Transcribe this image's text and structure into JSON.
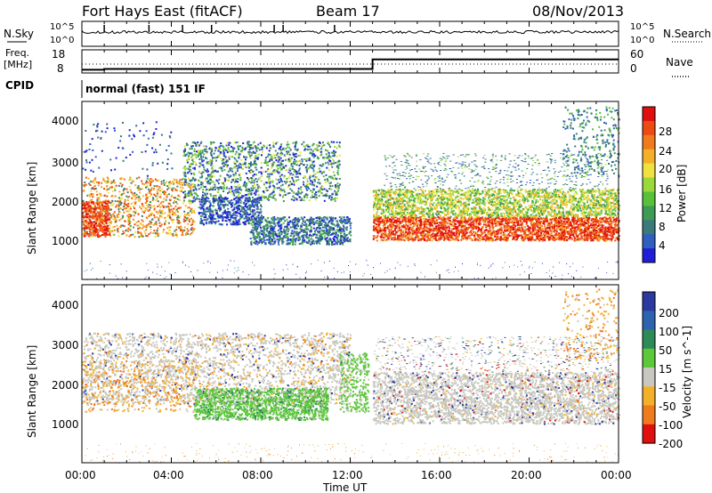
{
  "header": {
    "title": "Fort Hays East (fitACF)",
    "beam": "Beam 17",
    "date": "08/Nov/2013"
  },
  "status_panel": {
    "nsky_label": "N.Sky",
    "nsearch_label": "N.Search",
    "left_ticks": [
      "10^5",
      "10^0"
    ],
    "right_ticks": [
      "10^5",
      "10^0"
    ]
  },
  "freq_panel": {
    "freq_label_line1": "Freq.",
    "freq_label_line2": "[MHz]",
    "nave_label": "Nave",
    "left_ticks": [
      "18",
      "8"
    ],
    "right_ticks": [
      "60",
      "0"
    ],
    "freq_values_mhz": [
      [
        0.0,
        10.0
      ],
      [
        1.0,
        10.0
      ],
      [
        1.0,
        10.5
      ],
      [
        13.0,
        10.5
      ],
      [
        13.0,
        16.5
      ],
      [
        24.0,
        16.5
      ]
    ]
  },
  "cpid": {
    "label": "CPID",
    "text": "normal (fast) 151 IF"
  },
  "power_panel": {
    "ylabel": "Slant Range [km]",
    "yticks": [
      "4000",
      "3000",
      "2000",
      "1000"
    ],
    "colorbar_label": "Power [dB]",
    "colorbar_ticks": [
      "28",
      "24",
      "20",
      "16",
      "12",
      "8",
      "4"
    ],
    "colors": [
      "#1f1fd8",
      "#2f5fbf",
      "#3a7a7a",
      "#3f9a55",
      "#59c03a",
      "#9bd83a",
      "#f0e040",
      "#f5b02a",
      "#f07a1e",
      "#ee4a14",
      "#e01010"
    ]
  },
  "velocity_panel": {
    "ylabel": "Slant Range [km]",
    "yticks": [
      "4000",
      "3000",
      "2000",
      "1000"
    ],
    "colorbar_label": "Velocity [m s^-1]",
    "colorbar_ticks": [
      "200",
      "100",
      "50",
      "15",
      "-15",
      "-50",
      "-100",
      "-200"
    ],
    "colors": [
      "#2a3aa0",
      "#2e63b0",
      "#2f8a5a",
      "#5cc83a",
      "#c8c8c0",
      "#f5b02a",
      "#f07a1e",
      "#e01010"
    ]
  },
  "xaxis": {
    "label": "Time UT",
    "ticks": [
      "00:00",
      "04:00",
      "08:00",
      "12:00",
      "16:00",
      "20:00",
      "00:00"
    ]
  },
  "chart_data": {
    "type": "heatmap",
    "title": "Fort Hays East (fitACF)",
    "xlabel": "Time UT",
    "ylabel": "Slant Range [km]",
    "xlim": [
      0,
      24
    ],
    "ylim": [
      0,
      4500
    ],
    "series": [
      {
        "name": "Power [dB]",
        "clim": [
          0,
          30
        ],
        "regions": [
          {
            "t_start": 0.0,
            "t_end": 5.0,
            "range_low": 1100,
            "range_high": 2600,
            "value": 22
          },
          {
            "t_start": 4.5,
            "t_end": 11.5,
            "range_low": 2000,
            "range_high": 3500,
            "value": 12
          },
          {
            "t_start": 7.5,
            "t_end": 12.0,
            "range_low": 900,
            "range_high": 1600,
            "value": 10
          },
          {
            "t_start": 13.0,
            "t_end": 24.0,
            "range_low": 1000,
            "range_high": 2300,
            "value": 26
          }
        ]
      },
      {
        "name": "Velocity [m s^-1]",
        "clim": [
          -250,
          250
        ],
        "regions": [
          {
            "t_start": 0.0,
            "t_end": 12.0,
            "range_low": 1500,
            "range_high": 3300,
            "value": 0
          },
          {
            "t_start": 5.0,
            "t_end": 11.0,
            "range_low": 1100,
            "range_high": 1900,
            "value": 60
          },
          {
            "t_start": 11.5,
            "t_end": 12.8,
            "range_low": 1300,
            "range_high": 2800,
            "value": 60
          },
          {
            "t_start": 13.0,
            "t_end": 24.0,
            "range_low": 1000,
            "range_high": 2300,
            "value": 0
          }
        ]
      }
    ]
  }
}
